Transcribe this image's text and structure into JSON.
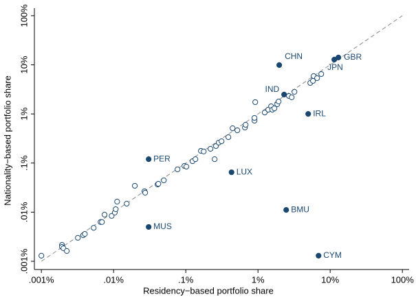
{
  "chart_data": {
    "type": "scatter",
    "x_label": "Residency−based portfolio share",
    "y_label": "Nationality−based portfolio share",
    "log_scale": true,
    "diagonal": true,
    "xlim": [
      0.0008,
      124
    ],
    "ylim": [
      0.00068,
      142
    ],
    "xticks": [
      {
        "value": 0.001,
        "label": ".001%"
      },
      {
        "value": 0.01,
        "label": ".01%"
      },
      {
        "value": 0.1,
        "label": ".1%"
      },
      {
        "value": 1,
        "label": "1%"
      },
      {
        "value": 10,
        "label": "10%"
      },
      {
        "value": 100,
        "label": "100%"
      }
    ],
    "yticks": [
      {
        "value": 0.001,
        "label": ".001%"
      },
      {
        "value": 0.01,
        "label": ".01%"
      },
      {
        "value": 0.1,
        "label": ".1%"
      },
      {
        "value": 1,
        "label": "1%"
      },
      {
        "value": 10,
        "label": "10%"
      },
      {
        "value": 100,
        "label": "100%"
      }
    ],
    "series": [
      {
        "color": "#1a476f",
        "filled": false,
        "x": [
          0.001,
          0.00193,
          0.00193,
          0.00202,
          0.00225,
          0.0032,
          0.0038,
          0.004,
          0.0053,
          0.0066,
          0.0069,
          0.0075,
          0.0094,
          0.0104,
          0.0107,
          0.0112,
          0.0152,
          0.0197,
          0.0268,
          0.0274,
          0.0407,
          0.0417,
          0.0496,
          0.0769,
          0.0957,
          0.102,
          0.124,
          0.136,
          0.162,
          0.177,
          0.22,
          0.262,
          0.251,
          0.286,
          0.313,
          0.389,
          0.445,
          0.518,
          0.659,
          0.674,
          0.895,
          0.895,
          0.916,
          1.24,
          1.39,
          1.52,
          1.58,
          1.69,
          1.85,
          1.93,
          2.68,
          2.93,
          3.2,
          5.3,
          5.78,
          5.9,
          6.59,
          7.52
        ],
        "values": [
          0.0013,
          0.00216,
          0.00196,
          0.00184,
          0.00162,
          0.003,
          0.0034,
          0.0036,
          0.0048,
          0.0063,
          0.0063,
          0.0089,
          0.0084,
          0.0098,
          0.0115,
          0.0164,
          0.0149,
          0.0344,
          0.0266,
          0.0249,
          0.0366,
          0.0378,
          0.0445,
          0.0745,
          0.0874,
          0.0846,
          0.109,
          0.12,
          0.177,
          0.172,
          0.195,
          0.222,
          0.12,
          0.261,
          0.278,
          0.337,
          0.512,
          0.465,
          0.529,
          0.601,
          0.73,
          0.83,
          1.74,
          1.07,
          1.22,
          1.43,
          1.22,
          1.3,
          1.58,
          1.79,
          2.32,
          2.18,
          2.82,
          4.28,
          4.71,
          5.9,
          5.36,
          6.5
        ]
      },
      {
        "color": "#1a476f",
        "filled": true,
        "x": [
          1.97,
          13.0,
          11.4,
          2.3,
          4.96,
          0.0306,
          0.43,
          2.46,
          0.0306,
          6.9
        ],
        "values": [
          9.9,
          14.1,
          12.8,
          2.48,
          1.0,
          0.12,
          0.065,
          0.0111,
          0.005,
          0.0013
        ],
        "labels": [
          "CHN",
          "GBR",
          "JPN",
          "IND",
          "IRL",
          "PER",
          "LUX",
          "BMU",
          "MUS",
          "CYM"
        ]
      }
    ]
  }
}
